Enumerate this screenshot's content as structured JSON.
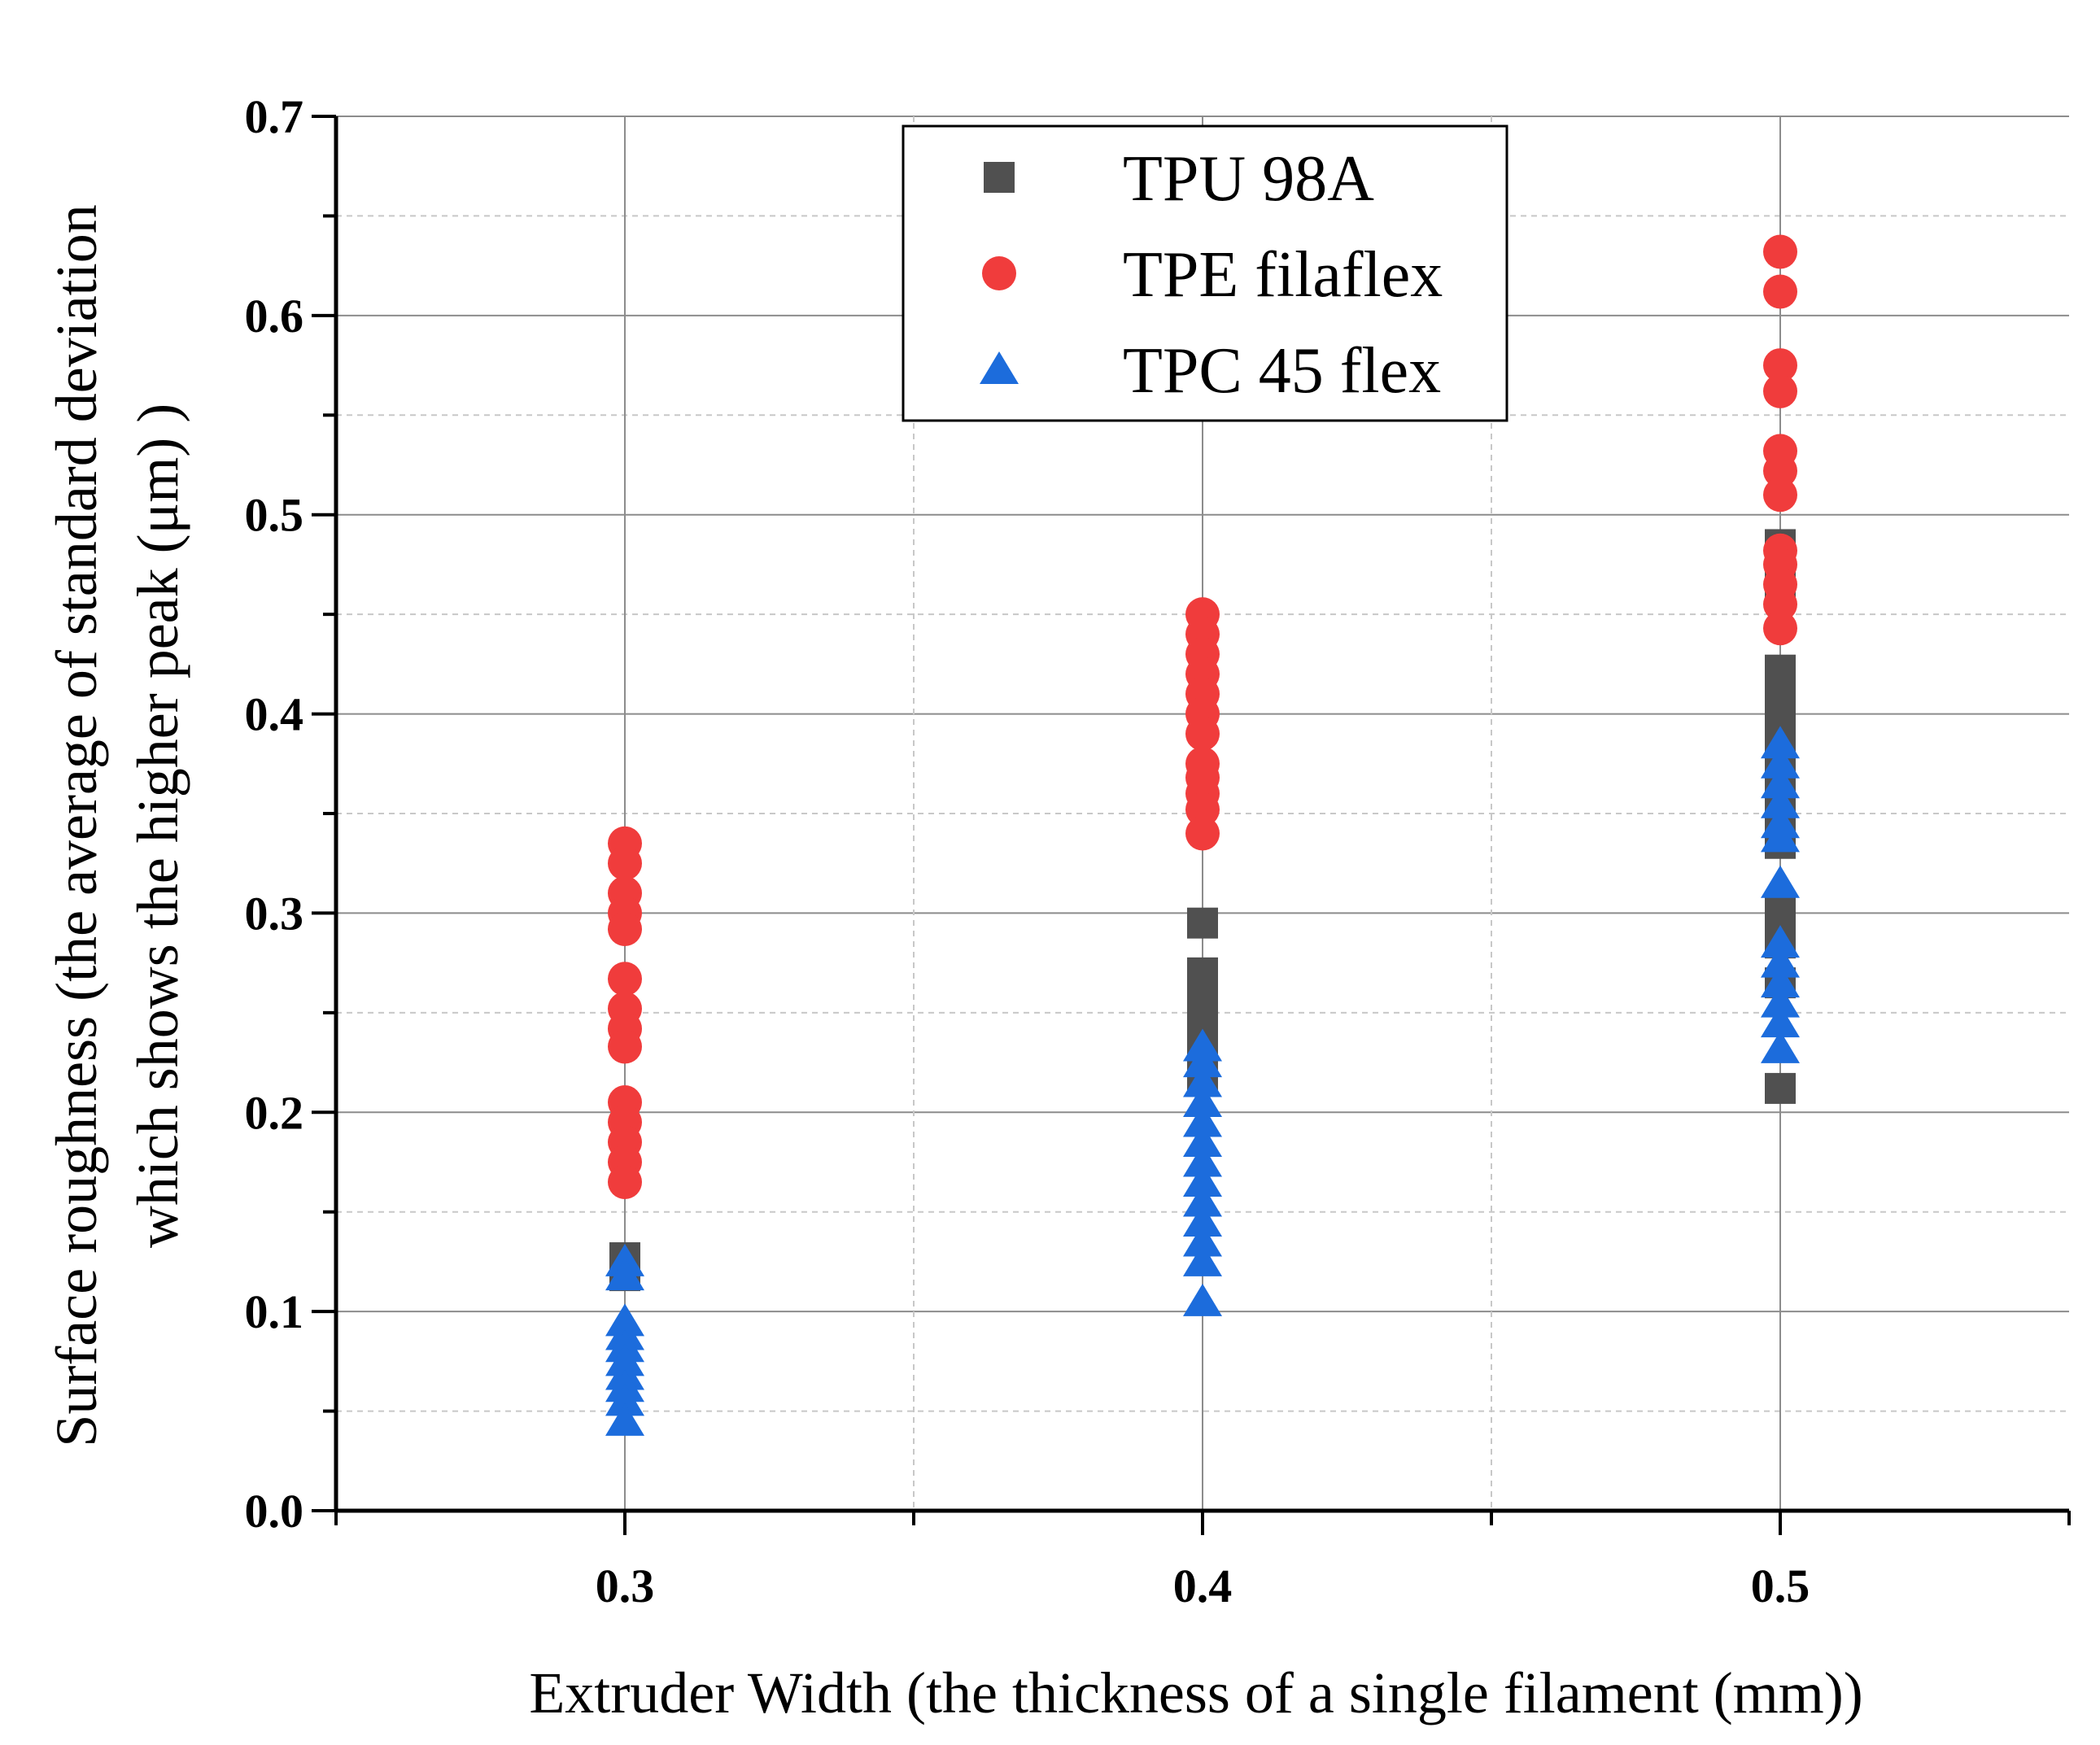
{
  "chart_data": {
    "type": "scatter",
    "title": "",
    "xlabel": "Extruder Width (the thickness of a single filament (mm))",
    "ylabel_line1": "Surface roughness (the average of standard deviation",
    "ylabel_line2": "which shows the higher peak (μm) )",
    "xlim": [
      0.25,
      0.55
    ],
    "ylim": [
      0.0,
      0.7
    ],
    "x_ticks": [
      0.3,
      0.4,
      0.5
    ],
    "x_tick_labels": [
      "0.3",
      "0.4",
      "0.5"
    ],
    "x_minor_ticks": [
      0.25,
      0.35,
      0.45,
      0.55
    ],
    "y_ticks": [
      0.0,
      0.1,
      0.2,
      0.3,
      0.4,
      0.5,
      0.6,
      0.7
    ],
    "y_tick_labels": [
      "0.0",
      "0.1",
      "0.2",
      "0.3",
      "0.4",
      "0.5",
      "0.6",
      "0.7"
    ],
    "y_minor_ticks": [
      0.05,
      0.15,
      0.25,
      0.35,
      0.45,
      0.55,
      0.65
    ],
    "grid": true,
    "legend_position": "top-center",
    "series": [
      {
        "name": "TPU 98A",
        "marker": "square",
        "color": "#505050",
        "points": [
          [
            0.3,
            0.127
          ],
          [
            0.3,
            0.123
          ],
          [
            0.3,
            0.118
          ],
          [
            0.4,
            0.295
          ],
          [
            0.4,
            0.27
          ],
          [
            0.4,
            0.262
          ],
          [
            0.4,
            0.255
          ],
          [
            0.4,
            0.25
          ],
          [
            0.4,
            0.245
          ],
          [
            0.4,
            0.24
          ],
          [
            0.4,
            0.232
          ],
          [
            0.4,
            0.225
          ],
          [
            0.4,
            0.218
          ],
          [
            0.5,
            0.485
          ],
          [
            0.5,
            0.475
          ],
          [
            0.5,
            0.465
          ],
          [
            0.5,
            0.422
          ],
          [
            0.5,
            0.415
          ],
          [
            0.5,
            0.405
          ],
          [
            0.5,
            0.395
          ],
          [
            0.5,
            0.385
          ],
          [
            0.5,
            0.375
          ],
          [
            0.5,
            0.365
          ],
          [
            0.5,
            0.355
          ],
          [
            0.5,
            0.345
          ],
          [
            0.5,
            0.335
          ],
          [
            0.5,
            0.3
          ],
          [
            0.5,
            0.285
          ],
          [
            0.5,
            0.265
          ],
          [
            0.5,
            0.212
          ]
        ]
      },
      {
        "name": "TPE filaflex",
        "marker": "circle",
        "color": "#f03c3c",
        "points": [
          [
            0.3,
            0.335
          ],
          [
            0.3,
            0.325
          ],
          [
            0.3,
            0.31
          ],
          [
            0.3,
            0.3
          ],
          [
            0.3,
            0.292
          ],
          [
            0.3,
            0.267
          ],
          [
            0.3,
            0.252
          ],
          [
            0.3,
            0.242
          ],
          [
            0.3,
            0.233
          ],
          [
            0.3,
            0.205
          ],
          [
            0.3,
            0.195
          ],
          [
            0.3,
            0.185
          ],
          [
            0.3,
            0.175
          ],
          [
            0.3,
            0.165
          ],
          [
            0.4,
            0.45
          ],
          [
            0.4,
            0.44
          ],
          [
            0.4,
            0.43
          ],
          [
            0.4,
            0.42
          ],
          [
            0.4,
            0.41
          ],
          [
            0.4,
            0.4
          ],
          [
            0.4,
            0.39
          ],
          [
            0.4,
            0.375
          ],
          [
            0.4,
            0.368
          ],
          [
            0.4,
            0.36
          ],
          [
            0.4,
            0.352
          ],
          [
            0.4,
            0.34
          ],
          [
            0.5,
            0.632
          ],
          [
            0.5,
            0.612
          ],
          [
            0.5,
            0.575
          ],
          [
            0.5,
            0.562
          ],
          [
            0.5,
            0.532
          ],
          [
            0.5,
            0.522
          ],
          [
            0.5,
            0.51
          ],
          [
            0.5,
            0.482
          ],
          [
            0.5,
            0.475
          ],
          [
            0.5,
            0.465
          ],
          [
            0.5,
            0.455
          ],
          [
            0.5,
            0.443
          ]
        ]
      },
      {
        "name": "TPC 45 flex",
        "marker": "triangle",
        "color": "#1c6cdc",
        "points": [
          [
            0.3,
            0.125
          ],
          [
            0.3,
            0.118
          ],
          [
            0.3,
            0.095
          ],
          [
            0.3,
            0.088
          ],
          [
            0.3,
            0.082
          ],
          [
            0.3,
            0.075
          ],
          [
            0.3,
            0.068
          ],
          [
            0.3,
            0.062
          ],
          [
            0.3,
            0.055
          ],
          [
            0.3,
            0.045
          ],
          [
            0.4,
            0.233
          ],
          [
            0.4,
            0.225
          ],
          [
            0.4,
            0.215
          ],
          [
            0.4,
            0.205
          ],
          [
            0.4,
            0.195
          ],
          [
            0.4,
            0.185
          ],
          [
            0.4,
            0.175
          ],
          [
            0.4,
            0.165
          ],
          [
            0.4,
            0.155
          ],
          [
            0.4,
            0.145
          ],
          [
            0.4,
            0.135
          ],
          [
            0.4,
            0.125
          ],
          [
            0.4,
            0.105
          ],
          [
            0.5,
            0.385
          ],
          [
            0.5,
            0.375
          ],
          [
            0.5,
            0.365
          ],
          [
            0.5,
            0.355
          ],
          [
            0.5,
            0.345
          ],
          [
            0.5,
            0.338
          ],
          [
            0.5,
            0.315
          ],
          [
            0.5,
            0.285
          ],
          [
            0.5,
            0.275
          ],
          [
            0.5,
            0.265
          ],
          [
            0.5,
            0.255
          ],
          [
            0.5,
            0.245
          ],
          [
            0.5,
            0.232
          ]
        ]
      }
    ]
  }
}
